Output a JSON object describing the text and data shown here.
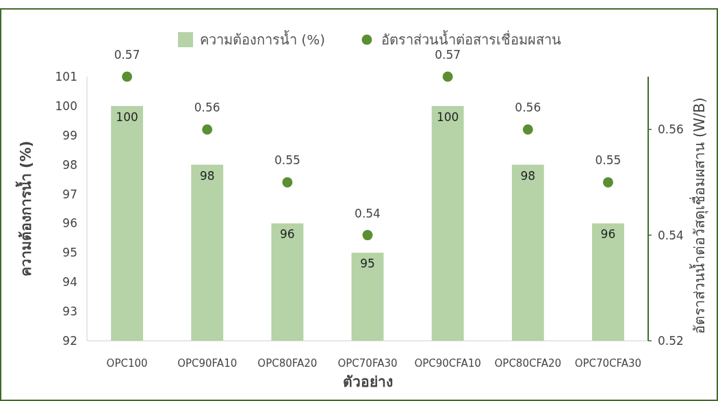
{
  "chart_data": {
    "type": "bar",
    "categories": [
      "OPC100",
      "OPC90FA10",
      "OPC80FA20",
      "OPC70FA30",
      "OPC90CFA10",
      "OPC80CFA20",
      "OPC70CFA30"
    ],
    "xlabel": "ตัวอย่าง",
    "ylabel": "ความต้องการน้ำ  (%)",
    "y2label": "อัตราส่วนน้ำต่อวัสดุเชื่อมผสาน (W/B)",
    "ylim": [
      92,
      101
    ],
    "yticks": [
      92,
      93,
      94,
      95,
      96,
      97,
      98,
      99,
      100,
      101
    ],
    "y2lim": [
      0.52,
      0.57
    ],
    "y2ticks": [
      0.52,
      0.54,
      0.56
    ],
    "legend": "top",
    "data_labels": true,
    "marker": "circle",
    "series": [
      {
        "name": "ความต้องการน้ำ (%)",
        "color": "#b5d3a6",
        "values": [
          100,
          98,
          96,
          95,
          100,
          98,
          96
        ]
      },
      {
        "name": "อัตราส่วนน้ำต่อสารเชื่อมผสาน",
        "type": "scatter",
        "axis": "y2",
        "color": "#5a8f32",
        "values": [
          0.57,
          0.56,
          0.55,
          0.54,
          0.57,
          0.56,
          0.55
        ]
      }
    ]
  }
}
